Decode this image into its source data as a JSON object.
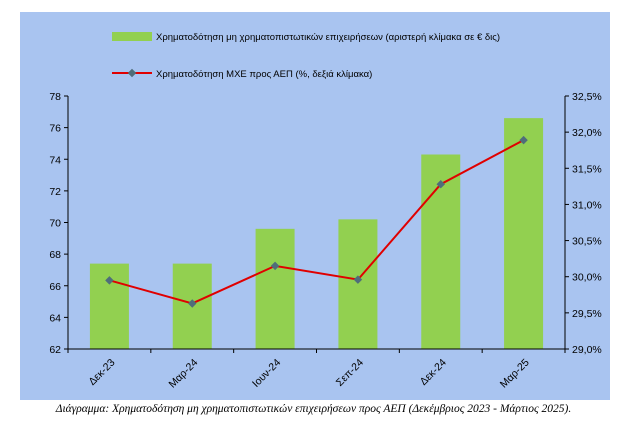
{
  "colors": {
    "background": "#a9c4f0",
    "bar": "#92d050",
    "line": "#e00000",
    "marker": "#4f6d7a",
    "axis": "#000000"
  },
  "chart_data": {
    "type": "bar",
    "categories": [
      "Δεκ-23",
      "Μαρ-24",
      "Ιουν-24",
      "Σεπ-24",
      "Δεκ-24",
      "Μαρ-25"
    ],
    "series": [
      {
        "name": "Χρηματοδότηση μη χρηματοπιστωτικών επιχειρήσεων  (αριστερή κλίμακα σε € δις)",
        "type": "bar",
        "axis": "left",
        "values": [
          67.4,
          67.4,
          69.6,
          70.2,
          74.3,
          76.6
        ]
      },
      {
        "name": "Χρηματοδότηση ΜΧΕ προς ΑΕΠ (%, δεξιά κλίμακα)",
        "type": "line",
        "axis": "right",
        "values": [
          29.95,
          29.63,
          30.15,
          29.96,
          31.28,
          31.89
        ]
      }
    ],
    "left_axis": {
      "ylim": [
        62,
        78
      ],
      "ticks": [
        "62",
        "64",
        "66",
        "68",
        "70",
        "72",
        "74",
        "76",
        "78"
      ]
    },
    "right_axis": {
      "ylim": [
        29.0,
        32.5
      ],
      "ticks": [
        "29,0%",
        "29,5%",
        "30,0%",
        "30,5%",
        "31,0%",
        "31,5%",
        "32,0%",
        "32,5%"
      ]
    },
    "legend_position": "top",
    "grid": false
  },
  "caption": "Διάγραμμα: Χρηματοδότηση μη χρηματοπιστωτικών επιχειρήσεων προς ΑΕΠ (Δεκέμβριος 2023 - Μάρτιος 2025)."
}
